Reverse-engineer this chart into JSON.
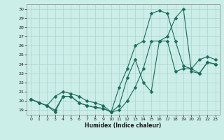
{
  "xlabel": "Humidex (Indice chaleur)",
  "bg_color": "#cceee8",
  "grid_color": "#aad4ce",
  "line_color": "#1a6b5a",
  "xlim": [
    -0.5,
    23.5
  ],
  "ylim": [
    18.5,
    30.5
  ],
  "xticks": [
    0,
    1,
    2,
    3,
    4,
    5,
    6,
    7,
    8,
    9,
    10,
    11,
    12,
    13,
    14,
    15,
    16,
    17,
    18,
    19,
    20,
    21,
    22,
    23
  ],
  "yticks": [
    19,
    20,
    21,
    22,
    23,
    24,
    25,
    26,
    27,
    28,
    29,
    30
  ],
  "line1_x": [
    0,
    1,
    2,
    3,
    4,
    5,
    6,
    7,
    8,
    9,
    10,
    11,
    12,
    13,
    14,
    15,
    16,
    17,
    18,
    19,
    20,
    21,
    22,
    23
  ],
  "line1_y": [
    20.2,
    19.8,
    19.5,
    19.0,
    20.5,
    20.5,
    19.8,
    19.5,
    19.3,
    19.2,
    18.8,
    19.0,
    20.0,
    21.5,
    23.5,
    26.5,
    26.5,
    26.5,
    23.2,
    23.5,
    23.5,
    23.0,
    24.2,
    24.0
  ],
  "line2_x": [
    0,
    2,
    3,
    4,
    5,
    6,
    7,
    8,
    9,
    10,
    11,
    12,
    13,
    14,
    15,
    16,
    17,
    18,
    19,
    20,
    21,
    22,
    23
  ],
  "line2_y": [
    20.2,
    19.5,
    20.5,
    21.0,
    20.8,
    20.5,
    20.0,
    19.8,
    19.5,
    18.8,
    21.5,
    23.5,
    26.0,
    26.5,
    29.5,
    29.8,
    29.5,
    26.5,
    23.8,
    23.5,
    24.5,
    24.8,
    24.5
  ],
  "line3_x": [
    0,
    1,
    2,
    3,
    4,
    5,
    6,
    7,
    8,
    9,
    10,
    11,
    12,
    13,
    14,
    15,
    16,
    17,
    18,
    19,
    20,
    21,
    22,
    23
  ],
  "line3_y": [
    20.2,
    19.8,
    19.5,
    18.8,
    20.5,
    20.5,
    19.8,
    19.5,
    19.3,
    19.2,
    18.8,
    19.5,
    22.5,
    24.5,
    22.0,
    21.0,
    26.5,
    27.0,
    29.0,
    30.0,
    23.2,
    23.0,
    24.2,
    24.0
  ]
}
